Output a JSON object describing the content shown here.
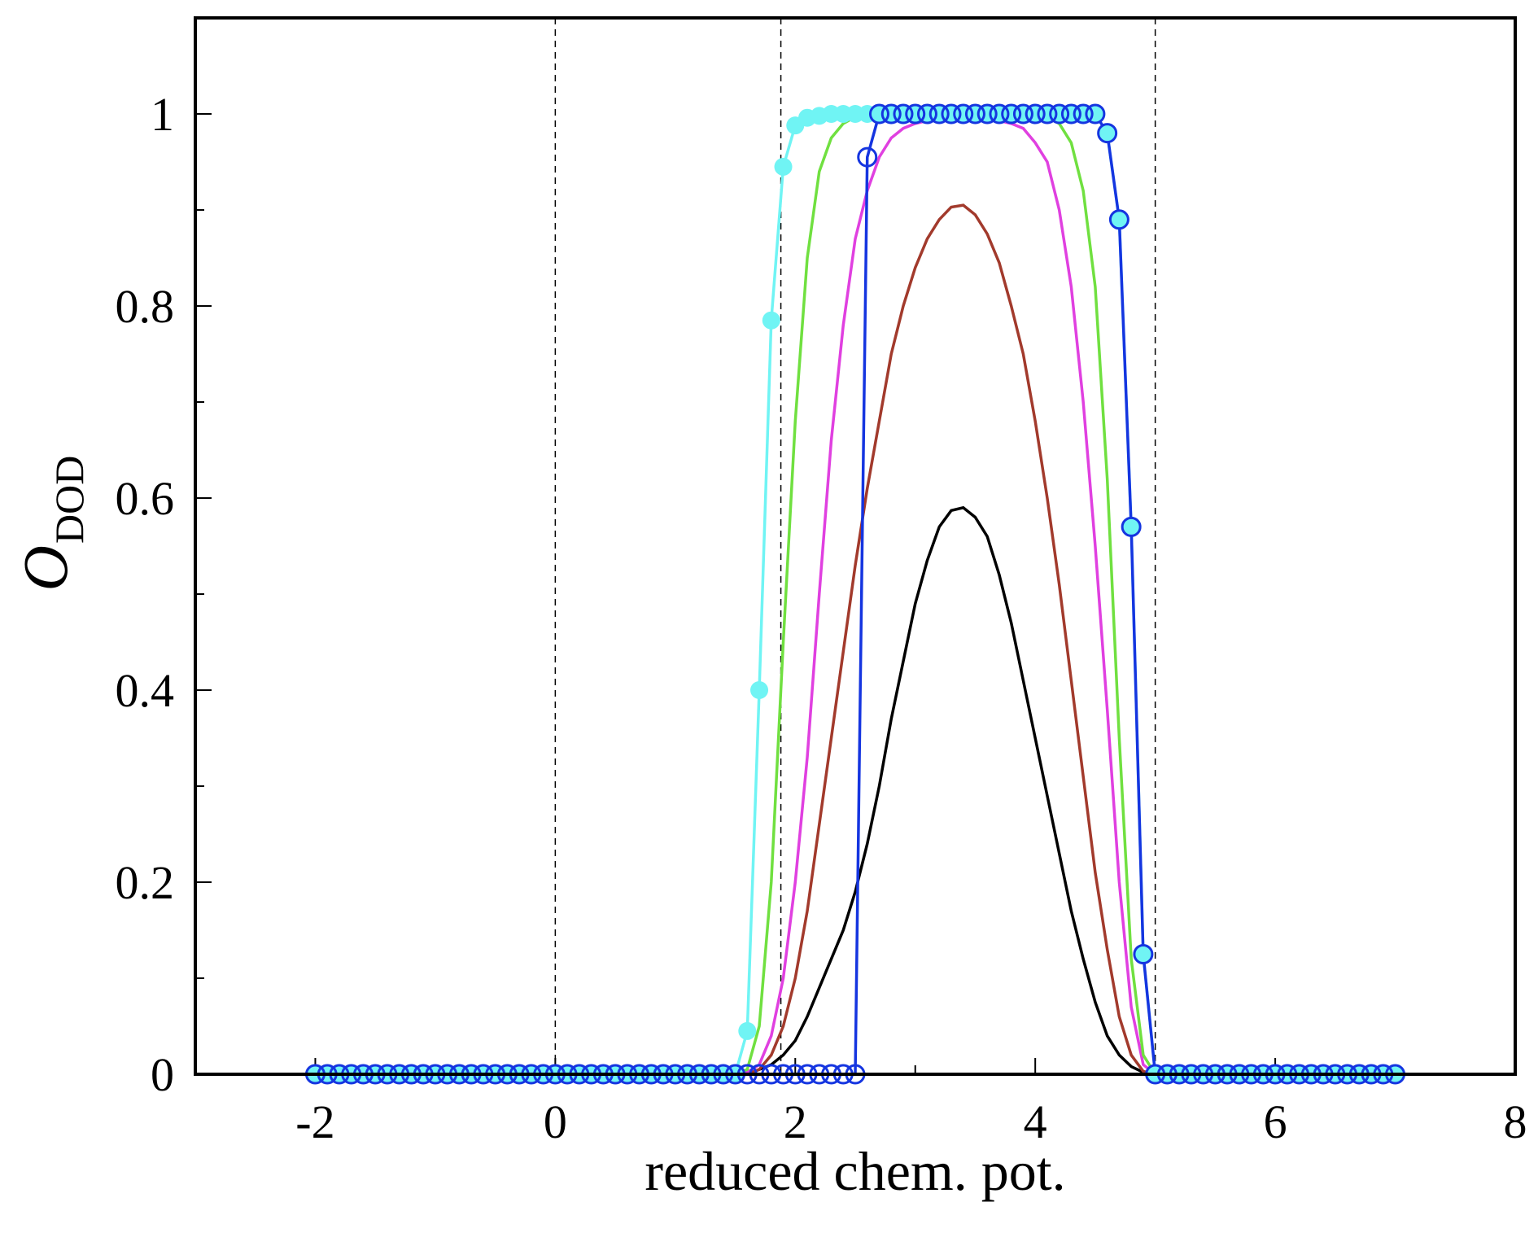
{
  "chart_data": {
    "type": "line",
    "xlabel": "reduced chem. pot.",
    "ylabel": "O",
    "ylabel_sub": "DOD",
    "xlim": [
      -3,
      8
    ],
    "xticks": [
      -2,
      0,
      2,
      4,
      6,
      8
    ],
    "xminorticks": [
      -1,
      1,
      3,
      5,
      7
    ],
    "ylim": [
      0,
      1.1
    ],
    "yticks": [
      0,
      0.2,
      0.4,
      0.6,
      0.8,
      1
    ],
    "yminorticks": [
      0.1,
      0.3,
      0.5,
      0.7,
      0.9
    ],
    "vlines": [
      0,
      1.88,
      5.0
    ],
    "x": [
      -2,
      -1.9,
      -1.8,
      -1.7,
      -1.6,
      -1.5,
      -1.4,
      -1.3,
      -1.2,
      -1.1,
      -1,
      -0.9,
      -0.8,
      -0.7,
      -0.6,
      -0.5,
      -0.4,
      -0.3,
      -0.2,
      -0.1,
      0,
      0.1,
      0.2,
      0.3,
      0.4,
      0.5,
      0.6,
      0.7,
      0.8,
      0.9,
      1,
      1.1,
      1.2,
      1.3,
      1.4,
      1.5,
      1.6,
      1.7,
      1.8,
      1.9,
      2,
      2.1,
      2.2,
      2.3,
      2.4,
      2.5,
      2.6,
      2.7,
      2.8,
      2.9,
      3,
      3.1,
      3.2,
      3.3,
      3.4,
      3.5,
      3.6,
      3.7,
      3.8,
      3.9,
      4,
      4.1,
      4.2,
      4.3,
      4.4,
      4.5,
      4.6,
      4.7,
      4.8,
      4.9,
      5,
      5.1,
      5.2,
      5.3,
      5.4,
      5.5,
      5.6,
      5.7,
      5.8,
      5.9,
      6,
      6.1,
      6.2,
      6.3,
      6.4,
      6.5,
      6.6,
      6.7,
      6.8,
      6.9,
      7
    ],
    "series": [
      {
        "color": "#000000",
        "values": [
          0,
          0,
          0,
          0,
          0,
          0,
          0,
          0,
          0,
          0,
          0,
          0,
          0,
          0,
          0,
          0,
          0,
          0,
          0,
          0,
          0,
          0,
          0,
          0,
          0,
          0,
          0,
          0,
          0,
          0,
          0,
          0,
          0,
          0,
          0,
          0,
          0,
          0.005,
          0.01,
          0.02,
          0.035,
          0.06,
          0.09,
          0.12,
          0.15,
          0.19,
          0.24,
          0.3,
          0.37,
          0.43,
          0.49,
          0.535,
          0.57,
          0.587,
          0.59,
          0.58,
          0.56,
          0.52,
          0.47,
          0.41,
          0.35,
          0.29,
          0.23,
          0.17,
          0.12,
          0.075,
          0.04,
          0.02,
          0.008,
          0.002,
          0,
          0,
          0,
          0,
          0,
          0,
          0,
          0,
          0,
          0,
          0,
          0,
          0,
          0,
          0,
          0,
          0,
          0,
          0,
          0,
          0
        ]
      },
      {
        "color": "#a23a2c",
        "values": [
          0,
          0,
          0,
          0,
          0,
          0,
          0,
          0,
          0,
          0,
          0,
          0,
          0,
          0,
          0,
          0,
          0,
          0,
          0,
          0,
          0,
          0,
          0,
          0,
          0,
          0,
          0,
          0,
          0,
          0,
          0,
          0,
          0,
          0,
          0,
          0,
          0,
          0.005,
          0.02,
          0.05,
          0.1,
          0.17,
          0.26,
          0.35,
          0.44,
          0.53,
          0.61,
          0.68,
          0.75,
          0.8,
          0.84,
          0.87,
          0.89,
          0.903,
          0.905,
          0.895,
          0.875,
          0.845,
          0.8,
          0.75,
          0.68,
          0.6,
          0.51,
          0.41,
          0.31,
          0.21,
          0.13,
          0.06,
          0.02,
          0.003,
          0,
          0,
          0,
          0,
          0,
          0,
          0,
          0,
          0,
          0,
          0,
          0,
          0,
          0,
          0,
          0,
          0,
          0,
          0,
          0,
          0
        ]
      },
      {
        "color": "#e040e0",
        "values": [
          0,
          0,
          0,
          0,
          0,
          0,
          0,
          0,
          0,
          0,
          0,
          0,
          0,
          0,
          0,
          0,
          0,
          0,
          0,
          0,
          0,
          0,
          0,
          0,
          0,
          0,
          0,
          0,
          0,
          0,
          0,
          0,
          0,
          0,
          0,
          0,
          0.002,
          0.01,
          0.04,
          0.1,
          0.2,
          0.33,
          0.5,
          0.66,
          0.78,
          0.87,
          0.92,
          0.955,
          0.975,
          0.985,
          0.99,
          0.993,
          0.993,
          0.993,
          0.993,
          0.993,
          0.993,
          0.993,
          0.99,
          0.985,
          0.97,
          0.95,
          0.9,
          0.82,
          0.7,
          0.55,
          0.38,
          0.2,
          0.07,
          0.01,
          0,
          0,
          0,
          0,
          0,
          0,
          0,
          0,
          0,
          0,
          0,
          0,
          0,
          0,
          0,
          0,
          0,
          0,
          0,
          0,
          0
        ]
      },
      {
        "color": "#70e040",
        "values": [
          0,
          0,
          0,
          0,
          0,
          0,
          0,
          0,
          0,
          0,
          0,
          0,
          0,
          0,
          0,
          0,
          0,
          0,
          0,
          0,
          0,
          0,
          0,
          0,
          0,
          0,
          0,
          0,
          0,
          0,
          0,
          0,
          0,
          0,
          0,
          0,
          0.005,
          0.05,
          0.2,
          0.45,
          0.68,
          0.85,
          0.94,
          0.975,
          0.99,
          0.997,
          0.997,
          0.997,
          0.997,
          0.997,
          0.997,
          0.997,
          0.997,
          0.997,
          0.997,
          0.997,
          0.997,
          0.997,
          0.997,
          0.997,
          0.997,
          0.997,
          0.99,
          0.97,
          0.92,
          0.82,
          0.62,
          0.35,
          0.12,
          0.02,
          0,
          0,
          0,
          0,
          0,
          0,
          0,
          0,
          0,
          0,
          0,
          0,
          0,
          0,
          0,
          0,
          0,
          0,
          0,
          0,
          0
        ]
      },
      {
        "color": "#70f4f4",
        "marker": "filled",
        "values": [
          0,
          0,
          0,
          0,
          0,
          0,
          0,
          0,
          0,
          0,
          0,
          0,
          0,
          0,
          0,
          0,
          0,
          0,
          0,
          0,
          0,
          0,
          0,
          0,
          0,
          0,
          0,
          0,
          0,
          0,
          0,
          0,
          0,
          0,
          0,
          0,
          0.045,
          0.4,
          0.785,
          0.945,
          0.988,
          0.996,
          0.998,
          1,
          1,
          1,
          1,
          1,
          1,
          1,
          1,
          1,
          1,
          1,
          1,
          1,
          1,
          1,
          1,
          1,
          1,
          1,
          1,
          1,
          1,
          1,
          0.98,
          0.89,
          0.57,
          0.125,
          0,
          0,
          0,
          0,
          0,
          0,
          0,
          0,
          0,
          0,
          0,
          0,
          0,
          0,
          0,
          0,
          0,
          0,
          0,
          0,
          0
        ]
      },
      {
        "color": "#1535e0",
        "marker": "open",
        "values": [
          0,
          0,
          0,
          0,
          0,
          0,
          0,
          0,
          0,
          0,
          0,
          0,
          0,
          0,
          0,
          0,
          0,
          0,
          0,
          0,
          0,
          0,
          0,
          0,
          0,
          0,
          0,
          0,
          0,
          0,
          0,
          0,
          0,
          0,
          0,
          0,
          0,
          0,
          0,
          0,
          0,
          0,
          0,
          0,
          0,
          0,
          0.955,
          1,
          1,
          1,
          1,
          1,
          1,
          1,
          1,
          1,
          1,
          1,
          1,
          1,
          1,
          1,
          1,
          1,
          1,
          1,
          0.98,
          0.89,
          0.57,
          0.125,
          0,
          0,
          0,
          0,
          0,
          0,
          0,
          0,
          0,
          0,
          0,
          0,
          0,
          0,
          0,
          0,
          0,
          0,
          0,
          0,
          0
        ]
      }
    ]
  }
}
